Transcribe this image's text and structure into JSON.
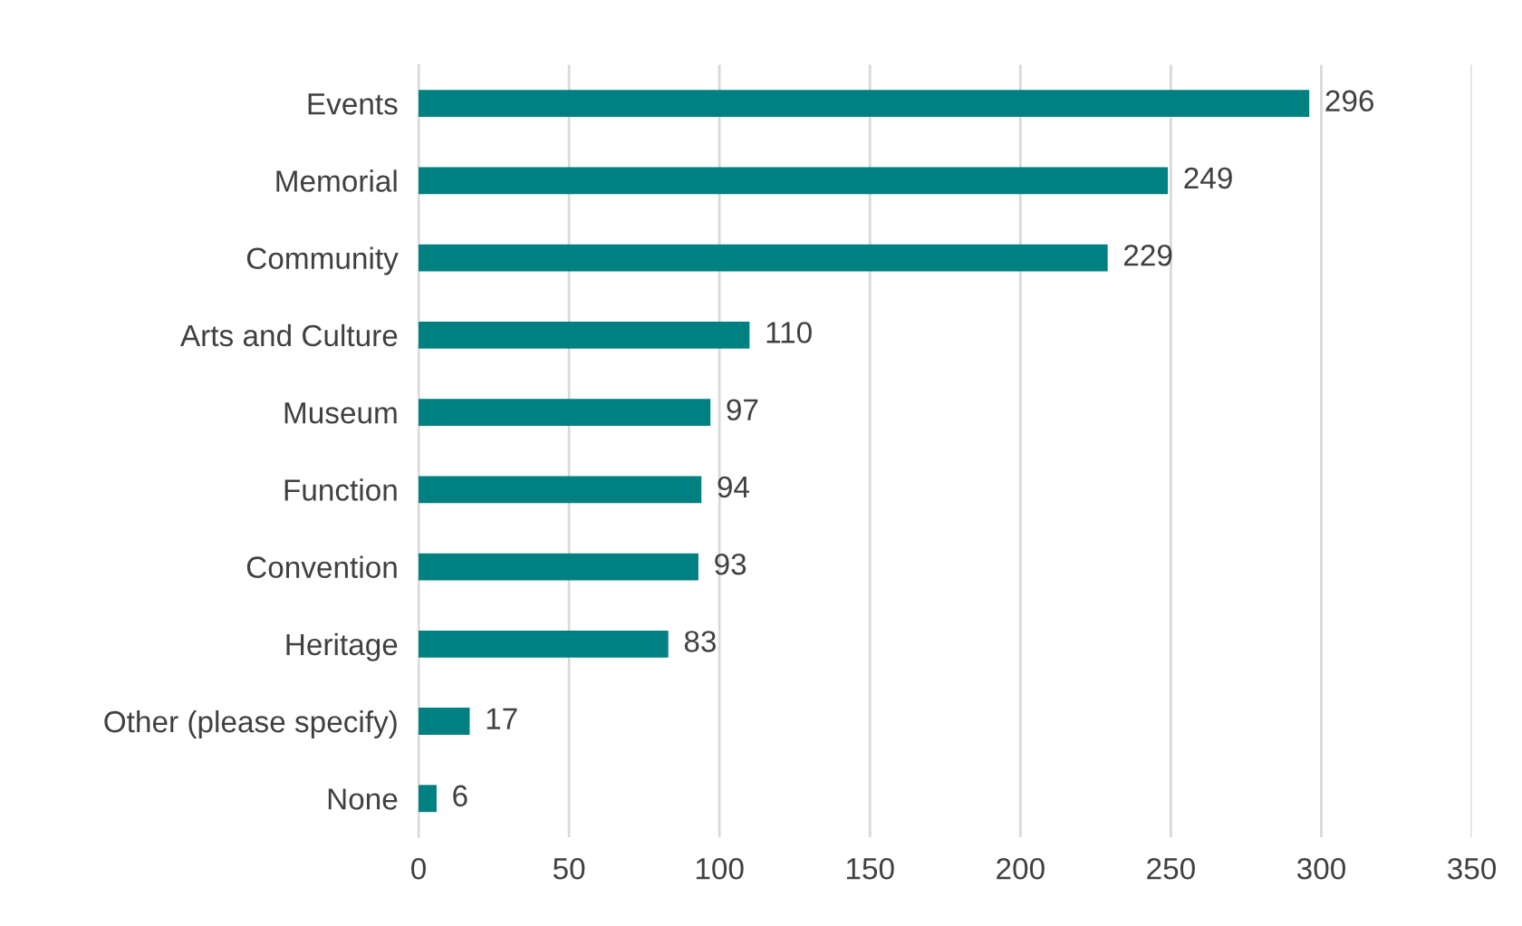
{
  "chart_data": {
    "type": "bar",
    "orientation": "horizontal",
    "categories": [
      "Events",
      "Memorial",
      "Community",
      "Arts and Culture",
      "Museum",
      "Function",
      "Convention",
      "Heritage",
      "Other (please specify)",
      "None"
    ],
    "values": [
      296,
      249,
      229,
      110,
      97,
      94,
      93,
      83,
      17,
      6
    ],
    "color": "#008080",
    "xlim": [
      0,
      350
    ],
    "xticks": [
      0,
      50,
      100,
      150,
      200,
      250,
      300,
      350
    ],
    "grid": "x",
    "data_labels": true,
    "legend": false
  }
}
